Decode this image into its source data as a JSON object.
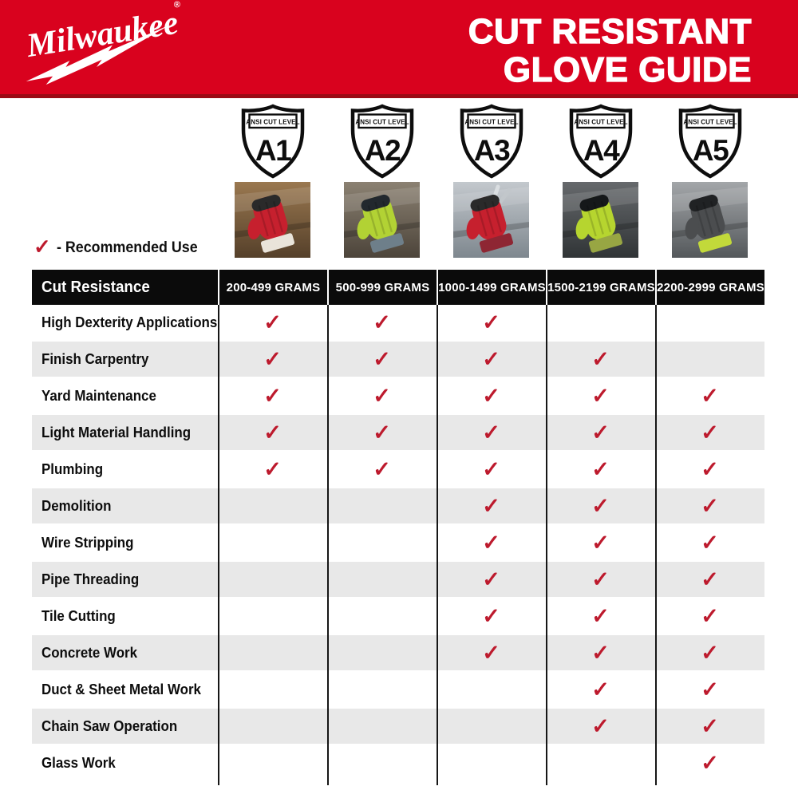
{
  "banner": {
    "brand": "Milwaukee",
    "reg_mark": "®",
    "title_line1": "CUT RESISTANT",
    "title_line2": "GLOVE GUIDE",
    "bg_color": "#D9021E",
    "edge_color": "#9B0A15"
  },
  "levels": [
    {
      "level": "A1",
      "badge_label": "ANSI CUT LEVEL",
      "photo_alt": "red cut-resistant glove gripping a lumber board",
      "photo": {
        "bg_top": "#9A7850",
        "bg_bottom": "#55402A",
        "glove": "#C6202E",
        "tips": "#2A2A2A",
        "cuff": "#E9E4DA"
      }
    },
    {
      "level": "A2",
      "badge_label": "ANSI CUT LEVEL",
      "photo_alt": "high-visibility green glove holding weathered wood",
      "photo": {
        "bg_top": "#8B8172",
        "bg_bottom": "#4C443A",
        "glove": "#B2D234",
        "tips": "#22282E",
        "cuff": "#6E7F8A"
      }
    },
    {
      "level": "A3",
      "badge_label": "ANSI CUT LEVEL",
      "photo_alt": "red glove using pliers on sheet metal",
      "photo": {
        "bg_top": "#C3C8CD",
        "bg_bottom": "#7E878E",
        "glove": "#C6202E",
        "tips": "#2A2A2A",
        "cuff": "#8E2633",
        "tool": true
      }
    },
    {
      "level": "A4",
      "badge_label": "ANSI CUT LEVEL",
      "photo_alt": "high-visibility green glove on steel edge",
      "photo": {
        "bg_top": "#66696C",
        "bg_bottom": "#303436",
        "glove": "#B6D52F",
        "tips": "#15181A",
        "cuff": "#98A643"
      }
    },
    {
      "level": "A5",
      "badge_label": "ANSI CUT LEVEL",
      "photo_alt": "gray glove with lime cuff on corrugated steel",
      "photo": {
        "bg_top": "#A3A6A9",
        "bg_bottom": "#54585B",
        "glove": "#4B4D4F",
        "tips": "#202224",
        "cuff": "#C2D93A"
      }
    }
  ],
  "legend": {
    "check": "✓",
    "text": "- Recommended Use"
  },
  "table": {
    "corner_label": "Cut Resistance",
    "columns": [
      "200-499 GRAMS",
      "500-999 GRAMS",
      "1000-1499 GRAMS",
      "1500-2199 GRAMS",
      "2200-2999 GRAMS"
    ],
    "check": "✓",
    "check_color": "#BD1A2D",
    "header_bg": "#0B0B0B",
    "alt_row_bg": "#E8E8E8",
    "rows": [
      {
        "label": "High Dexterity Applications",
        "checks": [
          1,
          1,
          1,
          0,
          0
        ]
      },
      {
        "label": "Finish Carpentry",
        "checks": [
          1,
          1,
          1,
          1,
          0
        ]
      },
      {
        "label": "Yard Maintenance",
        "checks": [
          1,
          1,
          1,
          1,
          1
        ]
      },
      {
        "label": "Light Material Handling",
        "checks": [
          1,
          1,
          1,
          1,
          1
        ]
      },
      {
        "label": "Plumbing",
        "checks": [
          1,
          1,
          1,
          1,
          1
        ]
      },
      {
        "label": "Demolition",
        "checks": [
          0,
          0,
          1,
          1,
          1
        ]
      },
      {
        "label": "Wire Stripping",
        "checks": [
          0,
          0,
          1,
          1,
          1
        ]
      },
      {
        "label": "Pipe Threading",
        "checks": [
          0,
          0,
          1,
          1,
          1
        ]
      },
      {
        "label": "Tile Cutting",
        "checks": [
          0,
          0,
          1,
          1,
          1
        ]
      },
      {
        "label": "Concrete Work",
        "checks": [
          0,
          0,
          1,
          1,
          1
        ]
      },
      {
        "label": "Duct & Sheet Metal Work",
        "checks": [
          0,
          0,
          0,
          1,
          1
        ]
      },
      {
        "label": "Chain Saw Operation",
        "checks": [
          0,
          0,
          0,
          1,
          1
        ]
      },
      {
        "label": "Glass Work",
        "checks": [
          0,
          0,
          0,
          0,
          1
        ]
      }
    ]
  },
  "chart_data": {
    "type": "table",
    "title": "CUT RESISTANT GLOVE GUIDE",
    "row_header": "Cut Resistance",
    "column_levels": [
      "A1",
      "A2",
      "A3",
      "A4",
      "A5"
    ],
    "column_gram_ranges": [
      "200-499 GRAMS",
      "500-999 GRAMS",
      "1000-1499 GRAMS",
      "1500-2199 GRAMS",
      "2200-2999 GRAMS"
    ],
    "legend": "✓ = Recommended Use",
    "rows": [
      {
        "application": "High Dexterity Applications",
        "recommended": [
          "A1",
          "A2",
          "A3"
        ]
      },
      {
        "application": "Finish Carpentry",
        "recommended": [
          "A1",
          "A2",
          "A3",
          "A4"
        ]
      },
      {
        "application": "Yard Maintenance",
        "recommended": [
          "A1",
          "A2",
          "A3",
          "A4",
          "A5"
        ]
      },
      {
        "application": "Light Material Handling",
        "recommended": [
          "A1",
          "A2",
          "A3",
          "A4",
          "A5"
        ]
      },
      {
        "application": "Plumbing",
        "recommended": [
          "A1",
          "A2",
          "A3",
          "A4",
          "A5"
        ]
      },
      {
        "application": "Demolition",
        "recommended": [
          "A3",
          "A4",
          "A5"
        ]
      },
      {
        "application": "Wire Stripping",
        "recommended": [
          "A3",
          "A4",
          "A5"
        ]
      },
      {
        "application": "Pipe Threading",
        "recommended": [
          "A3",
          "A4",
          "A5"
        ]
      },
      {
        "application": "Tile Cutting",
        "recommended": [
          "A3",
          "A4",
          "A5"
        ]
      },
      {
        "application": "Concrete Work",
        "recommended": [
          "A3",
          "A4",
          "A5"
        ]
      },
      {
        "application": "Duct & Sheet Metal Work",
        "recommended": [
          "A4",
          "A5"
        ]
      },
      {
        "application": "Chain Saw Operation",
        "recommended": [
          "A4",
          "A5"
        ]
      },
      {
        "application": "Glass Work",
        "recommended": [
          "A5"
        ]
      }
    ]
  }
}
